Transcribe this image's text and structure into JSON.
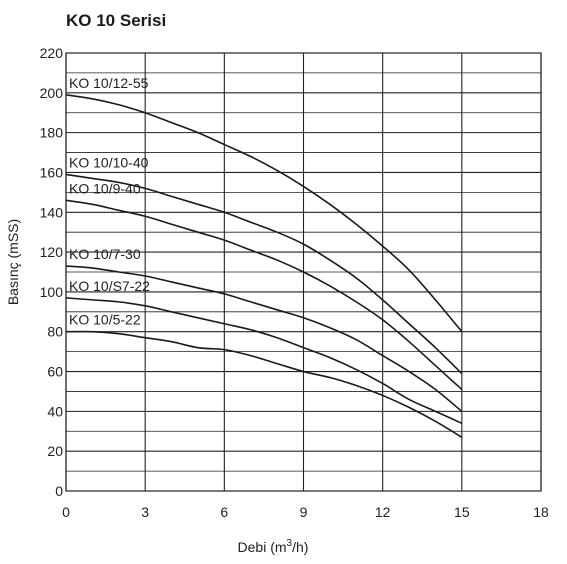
{
  "chart_data": {
    "type": "line",
    "title": "KO 10 Serisi",
    "xlabel_main": "Debi (m",
    "xlabel_sup": "3",
    "xlabel_end": "/h)",
    "ylabel": "Basınç (mSS)",
    "xlim": [
      0,
      18
    ],
    "ylim": [
      0,
      220
    ],
    "xticks": [
      0,
      3,
      6,
      9,
      12,
      15,
      18
    ],
    "yticks": [
      0,
      20,
      40,
      60,
      80,
      100,
      120,
      140,
      160,
      180,
      200,
      220
    ],
    "grid": true,
    "series": [
      {
        "name": "KO 10/12-55",
        "x": [
          0,
          1,
          2,
          3,
          4,
          5,
          6,
          7,
          8,
          9,
          10,
          11,
          12,
          13,
          14,
          15
        ],
        "y": [
          199,
          197,
          194,
          190,
          185,
          180,
          174,
          168,
          161,
          153,
          144,
          134,
          123,
          111,
          96,
          80
        ]
      },
      {
        "name": "KO 10/10-40",
        "x": [
          0,
          1,
          2,
          3,
          4,
          5,
          6,
          7,
          8,
          9,
          10,
          11,
          12,
          13,
          14,
          15
        ],
        "y": [
          159,
          157,
          155,
          152,
          148,
          144,
          140,
          135,
          130,
          124,
          116,
          107,
          96,
          84,
          72,
          59
        ]
      },
      {
        "name": "KO 10/9-40",
        "x": [
          0,
          1,
          2,
          3,
          4,
          5,
          6,
          7,
          8,
          9,
          10,
          11,
          12,
          13,
          14,
          15
        ],
        "y": [
          146,
          144,
          141,
          138,
          134,
          130,
          126,
          121,
          116,
          110,
          103,
          95,
          86,
          75,
          63,
          51
        ]
      },
      {
        "name": "KO 10/7-30",
        "x": [
          0,
          1,
          2,
          3,
          4,
          5,
          6,
          7,
          8,
          9,
          10,
          11,
          12,
          13,
          14,
          15
        ],
        "y": [
          113,
          112,
          110,
          108,
          105,
          102,
          99,
          95,
          91,
          87,
          82,
          76,
          68,
          60,
          51,
          40
        ]
      },
      {
        "name": "KO 10/S7-22",
        "x": [
          0,
          1,
          2,
          3,
          4,
          5,
          6,
          7,
          8,
          9,
          10,
          11,
          12,
          13,
          14,
          15
        ],
        "y": [
          97,
          96,
          95,
          93,
          90,
          87,
          84,
          81,
          77,
          72,
          67,
          61,
          54,
          46,
          40,
          34
        ]
      },
      {
        "name": "KO 10/5-22",
        "x": [
          0,
          1,
          2,
          3,
          4,
          5,
          6,
          7,
          8,
          9,
          10,
          11,
          12,
          13,
          14,
          15
        ],
        "y": [
          80,
          80,
          79,
          77,
          75,
          72,
          71,
          68,
          64,
          60,
          57,
          53,
          48,
          42,
          35,
          27
        ]
      }
    ]
  }
}
